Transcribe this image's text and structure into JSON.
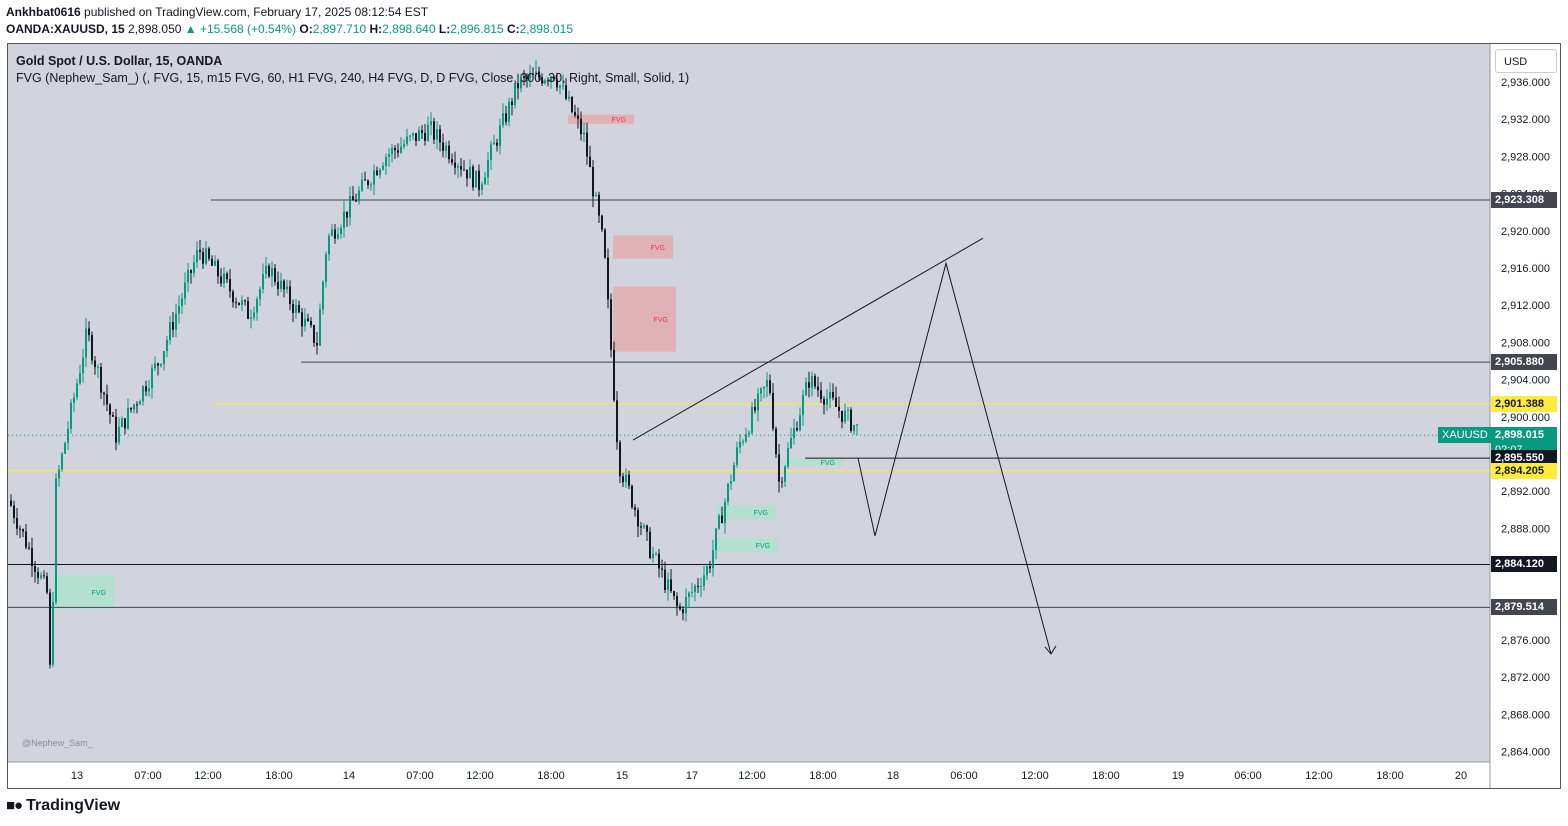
{
  "header": {
    "author": "Ankhbat0616",
    "published_text": " published on TradingView.com, February 17, 2025 08:12:54 EST",
    "symbol": "OANDA:XAUUSD, 15",
    "last": "2,898.050",
    "change": "▲ +15.568 (+0.54%)",
    "o_label": "O:",
    "o_value": "2,897.710",
    "h_label": "H:",
    "h_value": "2,898.640",
    "l_label": "L:",
    "l_value": "2,896.815",
    "c_label": "C:",
    "c_value": "2,898.015"
  },
  "legend": {
    "title": "Gold Spot / U.S. Dollar, 15, OANDA",
    "indicator": "FVG (Nephew_Sam_) (, FVG, 15, m15 FVG, 60, H1 FVG, 240, H4 FVG, D, D FVG, Close, 300, 30, Right, Small, Solid, 1)"
  },
  "currency_button": "USD",
  "watermark": "@Nephew_Sam_",
  "brand": "TradingView",
  "colors": {
    "bg": "#d1d4dc",
    "up": "#089981",
    "down": "#131722",
    "yellow": "#ffeb3b",
    "bear_fvg": "#e8a3a8",
    "bull_fvg": "#a8e6c9"
  },
  "price_axis": {
    "ticks": [
      "2,936.000",
      "2,932.000",
      "2,928.000",
      "2,924.000",
      "2,920.000",
      "2,916.000",
      "2,912.000",
      "2,908.000",
      "2,904.000",
      "2,900.000",
      "2,896.000",
      "2,892.000",
      "2,888.000",
      "2,884.000",
      "2,880.000",
      "2,876.000",
      "2,872.000",
      "2,868.000",
      "2,864.000"
    ],
    "tick_values": [
      2936,
      2932,
      2928,
      2924,
      2920,
      2916,
      2912,
      2908,
      2904,
      2900,
      2896,
      2892,
      2888,
      2884,
      2880,
      2876,
      2872,
      2868,
      2864
    ]
  },
  "time_axis": [
    "13",
    "07:00",
    "12:00",
    "18:00",
    "14",
    "07:00",
    "12:00",
    "18:00",
    "15",
    "17",
    "12:00",
    "18:00",
    "18",
    "06:00",
    "12:00",
    "18:00",
    "19",
    "06:00",
    "12:00",
    "18:00",
    "20"
  ],
  "price_labels": [
    {
      "text": "2,923.308",
      "value": 2923.308,
      "style": "dark"
    },
    {
      "text": "2,905.880",
      "value": 2905.88,
      "style": "dark"
    },
    {
      "text": "2,901.388",
      "value": 2901.388,
      "style": "yellow"
    },
    {
      "text": "2,898.015",
      "value": 2898.015,
      "style": "green",
      "sub": "02:07",
      "tag": "XAUUSD"
    },
    {
      "text": "2,895.550",
      "value": 2895.55,
      "style": "black"
    },
    {
      "text": "2,894.205",
      "value": 2894.205,
      "style": "yellow"
    },
    {
      "text": "2,884.120",
      "value": 2884.12,
      "style": "black"
    },
    {
      "text": "2,879.514",
      "value": 2879.514,
      "style": "dark"
    }
  ],
  "fvg_label": "FVG",
  "chart_data": {
    "type": "candlestick",
    "symbol": "XAUUSD",
    "interval": "15",
    "ylim": [
      2863,
      2937
    ],
    "current_price": 2898.015,
    "countdown": "02:07",
    "price_path": [
      {
        "t": "12 Feb",
        "p": 2891
      },
      {
        "t": "13",
        "p": 2881
      },
      {
        "t": "13",
        "p": 2870
      },
      {
        "t": "13",
        "p": 2892
      },
      {
        "t": "13 07:00",
        "p": 2909
      },
      {
        "t": "13 07:00",
        "p": 2898
      },
      {
        "t": "13 12:00",
        "p": 2906
      },
      {
        "t": "13 12:00",
        "p": 2918
      },
      {
        "t": "13 18:00",
        "p": 2911
      },
      {
        "t": "13 18:00",
        "p": 2916
      },
      {
        "t": "14",
        "p": 2908
      },
      {
        "t": "14",
        "p": 2919
      },
      {
        "t": "14 07:00",
        "p": 2928
      },
      {
        "t": "14 12:00",
        "p": 2931
      },
      {
        "t": "14 12:00",
        "p": 2925
      },
      {
        "t": "14 18:00",
        "p": 2936
      },
      {
        "t": "14 18:00",
        "p": 2937
      },
      {
        "t": "15",
        "p": 2930
      },
      {
        "t": "15",
        "p": 2918
      },
      {
        "t": "15",
        "p": 2895
      },
      {
        "t": "17",
        "p": 2886
      },
      {
        "t": "17",
        "p": 2879
      },
      {
        "t": "17",
        "p": 2884
      },
      {
        "t": "17 12:00",
        "p": 2897
      },
      {
        "t": "17 12:00",
        "p": 2904
      },
      {
        "t": "17 12:00",
        "p": 2893
      },
      {
        "t": "17 18:00",
        "p": 2904
      },
      {
        "t": "17 18:00",
        "p": 2898
      }
    ],
    "horizontal_levels": [
      2923.308,
      2905.88,
      2901.388,
      2895.55,
      2894.205,
      2884.12,
      2879.514
    ],
    "fvg_zones": [
      {
        "kind": "bearish",
        "label": "FVG",
        "top": 2932.5,
        "bottom": 2931.5
      },
      {
        "kind": "bearish",
        "label": "FVG",
        "top": 2919.5,
        "bottom": 2917.0
      },
      {
        "kind": "bearish",
        "label": "FVG",
        "top": 2914.0,
        "bottom": 2907.0
      },
      {
        "kind": "bullish",
        "label": "FVG",
        "top": 2895.5,
        "bottom": 2894.8
      },
      {
        "kind": "bullish",
        "label": "FVG",
        "top": 2890.5,
        "bottom": 2889.0
      },
      {
        "kind": "bullish",
        "label": "FVG",
        "top": 2887.0,
        "bottom": 2885.4
      },
      {
        "kind": "bullish",
        "label": "FVG",
        "top": 2883.0,
        "bottom": 2879.3
      }
    ],
    "drawings": [
      {
        "kind": "trendline",
        "from": {
          "t": "15 ~16:00",
          "p": 2897.5
        },
        "to": {
          "t": "18 ~05:00",
          "p": 2919.2
        }
      },
      {
        "kind": "projected_path",
        "points": [
          {
            "t": "18 ~00:00",
            "p": 2895.55
          },
          {
            "t": "18 ~02:00",
            "p": 2887.2
          },
          {
            "t": "18 ~04:00",
            "p": 2916.5
          },
          {
            "t": "18 ~12:00",
            "p": 2874.5
          }
        ]
      }
    ]
  }
}
